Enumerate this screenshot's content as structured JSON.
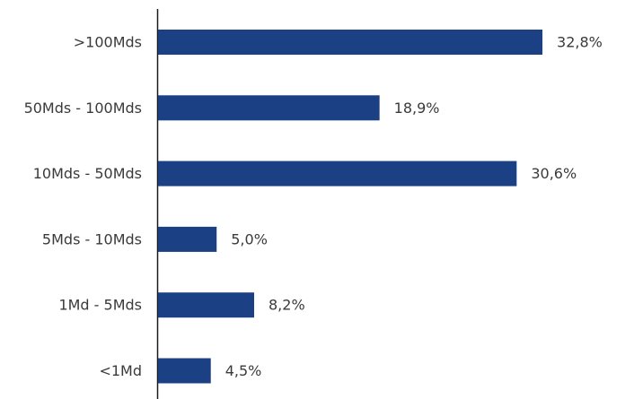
{
  "colors": {
    "bar": "#1b4084",
    "axis": "#1a1a1a",
    "text": "#3a3a3a"
  },
  "chart_data": {
    "type": "bar",
    "orientation": "horizontal",
    "title": "",
    "xlabel": "",
    "ylabel": "",
    "grid": false,
    "xlim": [
      0,
      40
    ],
    "categories": [
      ">100Mds",
      "50Mds - 100Mds",
      "10Mds - 50Mds",
      "5Mds - 10Mds",
      "1Md - 5Mds",
      "<1Md"
    ],
    "values": [
      32.8,
      18.9,
      30.6,
      5.0,
      8.2,
      4.5
    ],
    "value_labels": [
      "32,8%",
      "18,9%",
      "30,6%",
      "5,0%",
      "8,2%",
      "4,5%"
    ]
  }
}
